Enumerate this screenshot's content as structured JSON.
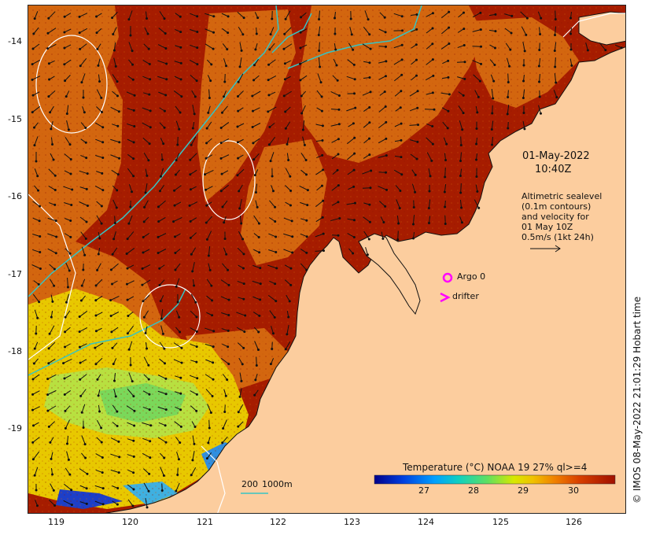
{
  "map": {
    "date_line1": "01-May-2022",
    "date_line2": "10:40Z",
    "legend_note": [
      "Altimetric sealevel",
      "(0.1m contours)",
      "and velocity for",
      "01 May 10Z",
      "0.5m/s (1kt 24h)"
    ],
    "argo_label": "Argo 0",
    "drifter_label": "drifter",
    "depth_label_1": "200",
    "depth_label_2": "1000m",
    "colorbar_title": "Temperature (°C) NOAA 19 27% ql>=4",
    "colorbar_ticks": [
      "27",
      "28",
      "29",
      "30"
    ],
    "credit": "© IMOS 08-May-2022 21:01:29 Hobart time",
    "lat_ticks": [
      "-14",
      "-15",
      "-16",
      "-17",
      "-18",
      "-19"
    ],
    "lon_ticks": [
      "119",
      "120",
      "121",
      "122",
      "123",
      "124",
      "125",
      "126"
    ],
    "lat_range": [
      -20.1,
      -13.5
    ],
    "lon_range": [
      118.65,
      126.7
    ],
    "colors": {
      "land": "#fccd9e",
      "sst_warm": "#a61c00",
      "sst_orange": "#d66a10",
      "sst_yellow": "#e8d600",
      "sst_green": "#7be05a",
      "isobath": "#36c4c4",
      "contour": "#ffffff",
      "marker": "#ff00ff"
    }
  }
}
